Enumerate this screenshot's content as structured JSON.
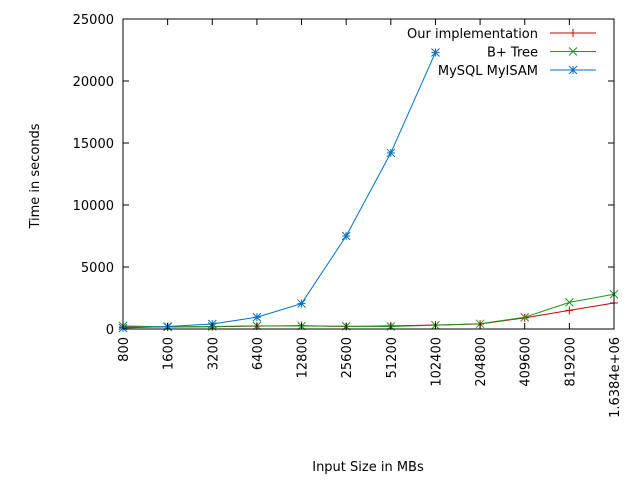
{
  "chart_data": {
    "type": "line",
    "title": "",
    "xlabel": "Input Size in MBs",
    "ylabel": "Time in seconds",
    "x_type": "categorical",
    "categories": [
      "800",
      "1600",
      "3200",
      "6400",
      "12800",
      "25600",
      "51200",
      "102400",
      "204800",
      "409600",
      "819200",
      "1.6384e+06"
    ],
    "ylim": [
      0,
      25000
    ],
    "yticks": [
      0,
      5000,
      10000,
      15000,
      20000,
      25000
    ],
    "ytick_labels": [
      "0",
      "5000",
      "10000",
      "15000",
      "20000",
      "25000"
    ],
    "grid": false,
    "legend_position": "top-right",
    "series": [
      {
        "name": "Our implementation",
        "color": "#cc0000",
        "marker": "plus",
        "x": [
          "800",
          "1600",
          "3200",
          "6400",
          "12800",
          "25600",
          "51200",
          "102400",
          "204800",
          "409600",
          "819200",
          "1.6384e+06"
        ],
        "values": [
          150,
          160,
          180,
          230,
          270,
          200,
          250,
          320,
          400,
          900,
          1500,
          2100
        ]
      },
      {
        "name": "B+ Tree",
        "color": "#1a9a1a",
        "marker": "x",
        "x": [
          "800",
          "1600",
          "3200",
          "6400",
          "12800",
          "25600",
          "51200",
          "102400",
          "204800",
          "409600",
          "819200",
          "1.6384e+06"
        ],
        "values": [
          250,
          170,
          200,
          250,
          240,
          220,
          200,
          300,
          420,
          950,
          2150,
          2800
        ]
      },
      {
        "name": "MySQL MyISAM",
        "color": "#0070c0",
        "marker": "star",
        "x": [
          "800",
          "1600",
          "3200",
          "6400",
          "12800",
          "25600",
          "51200",
          "102400"
        ],
        "values": [
          80,
          200,
          400,
          950,
          2050,
          7500,
          14200,
          22300
        ]
      }
    ]
  }
}
